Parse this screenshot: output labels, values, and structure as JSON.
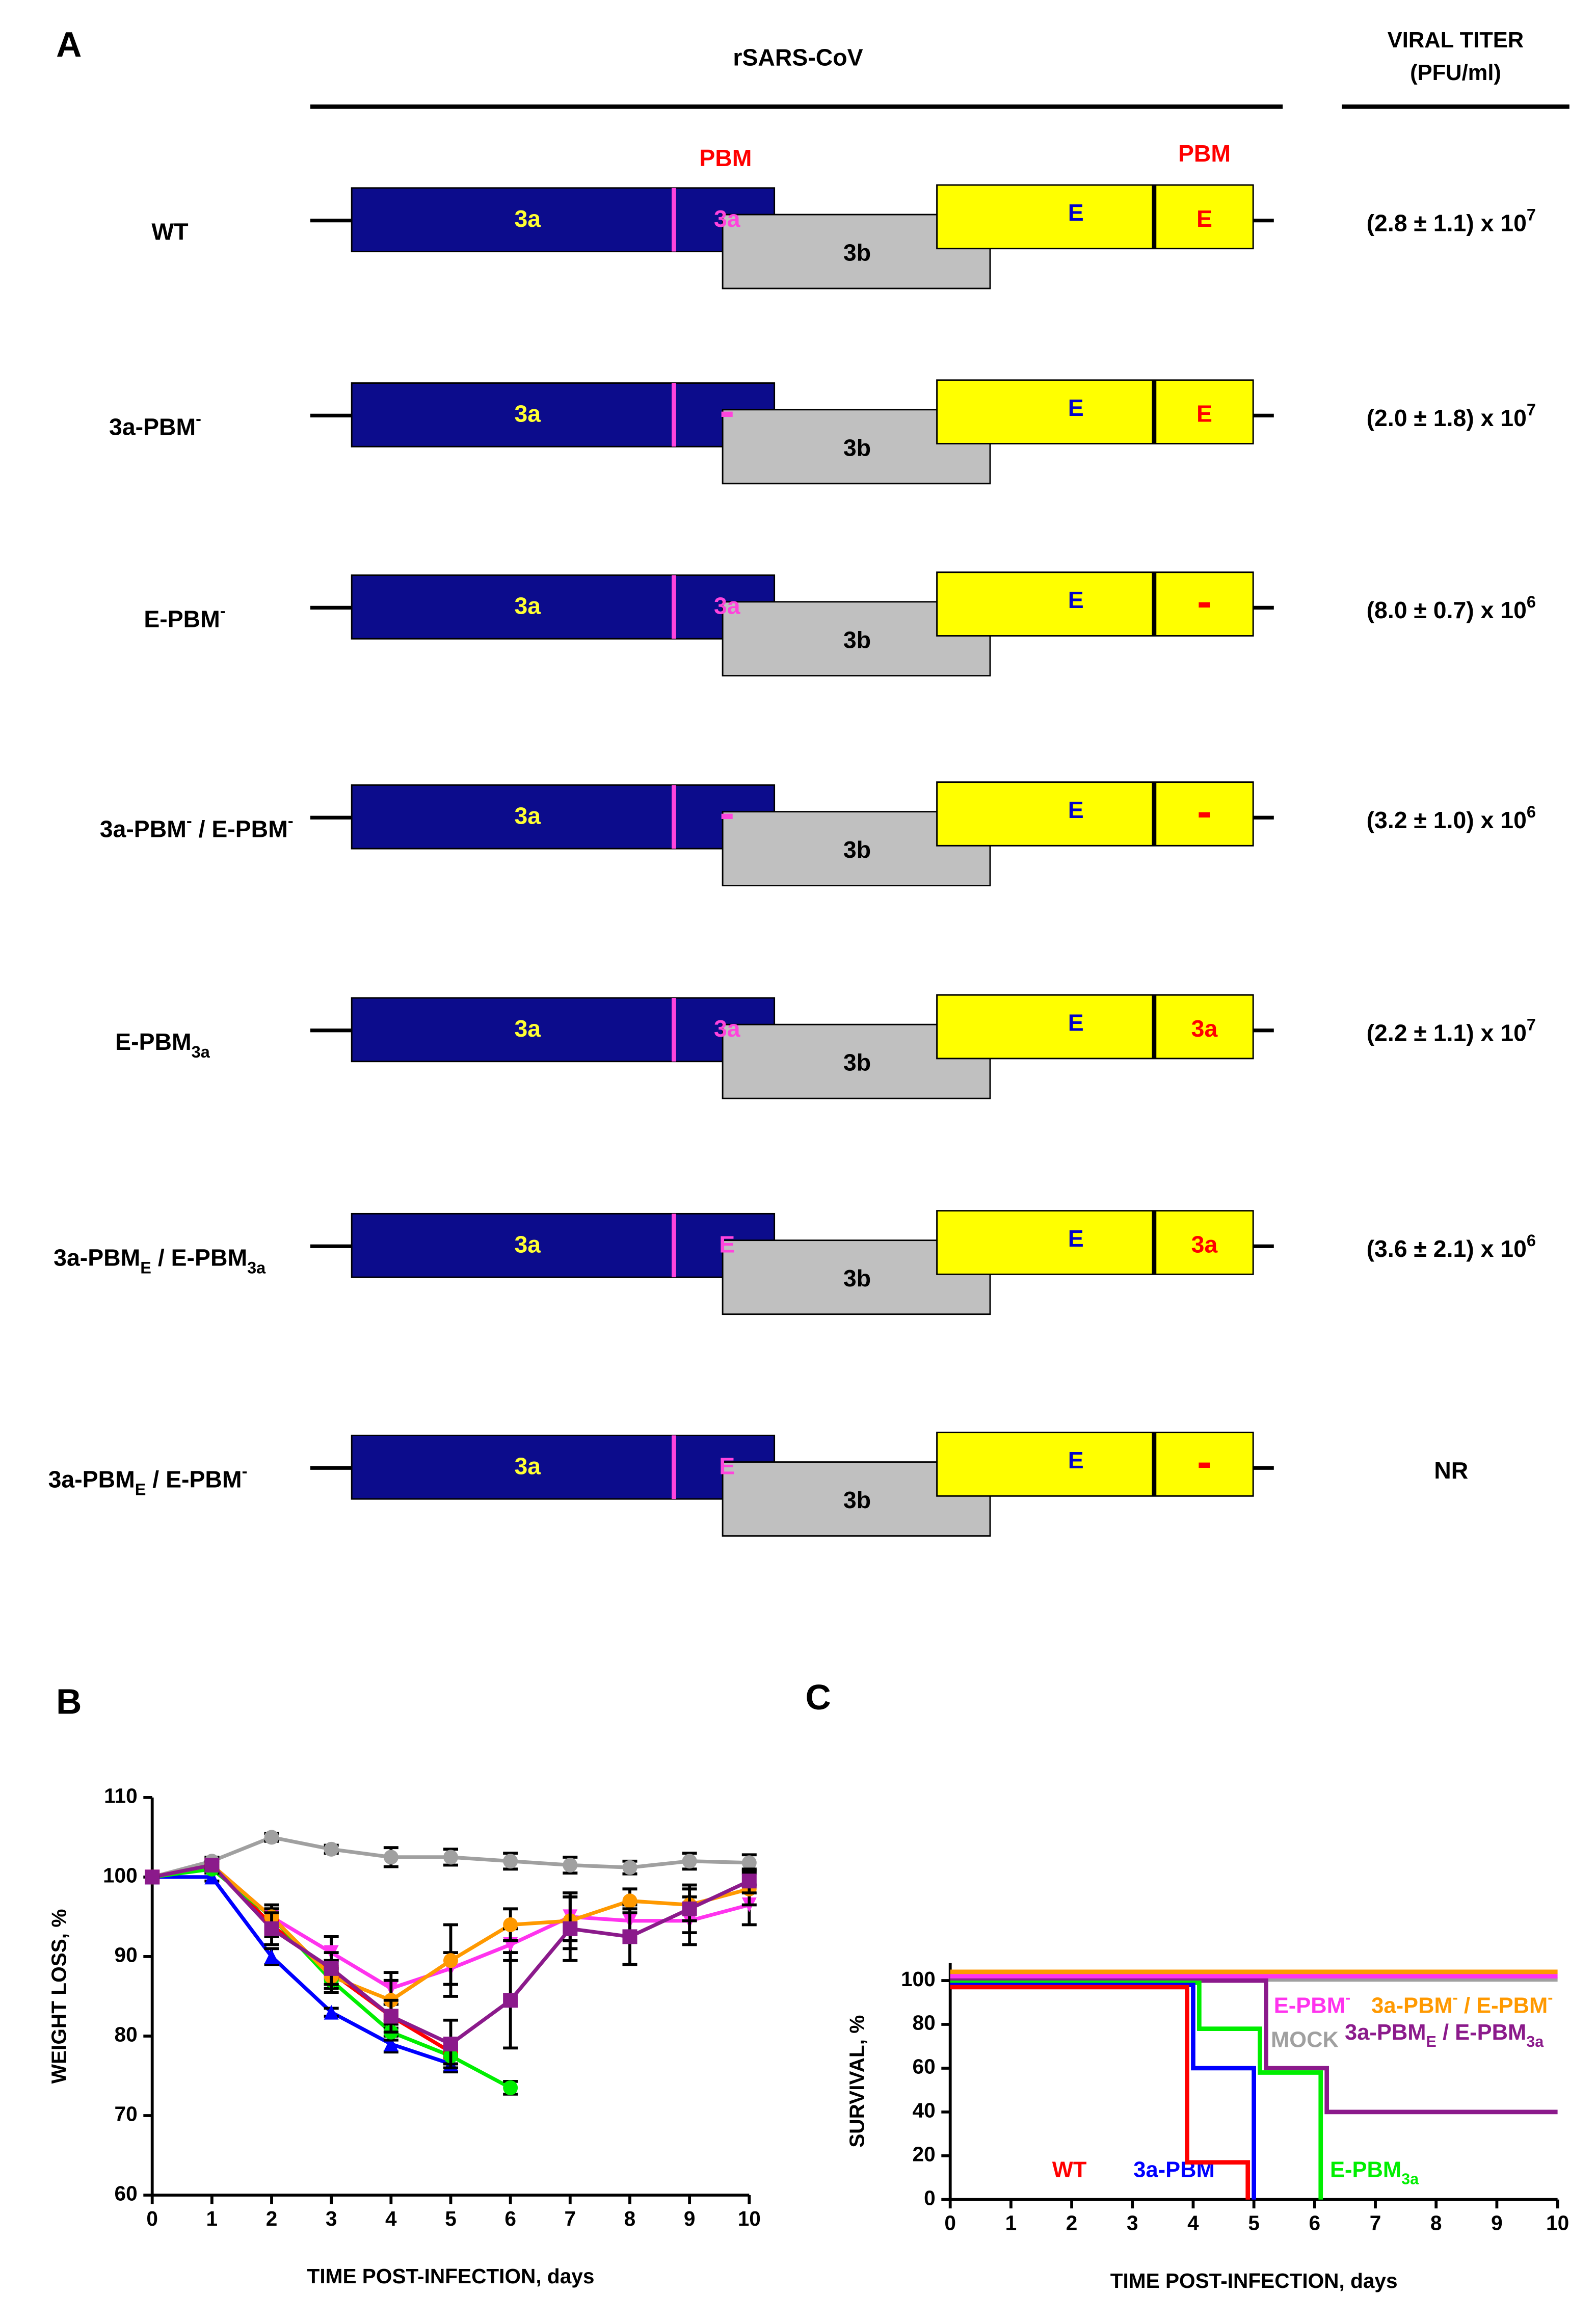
{
  "panel_labels": [
    "A",
    "B",
    "C"
  ],
  "diagram": {
    "header": "rSARS-CoV",
    "titer_header": [
      "VIRAL TITER",
      "(PFU/ml)"
    ],
    "pbm_labels": [
      "PBM",
      "PBM"
    ],
    "rows": [
      {
        "name": [
          {
            "text": "WT"
          }
        ],
        "a3": "3a",
        "a3_pbm": "3a",
        "b3": "3b",
        "e": "E",
        "e_pbm": "E",
        "titer": [
          {
            "text": "(2.8 ± 1.1) x 10"
          },
          {
            "sup": "7"
          }
        ]
      },
      {
        "name": [
          {
            "text": "3a-PBM"
          },
          {
            "sup": "-"
          }
        ],
        "a3": "3a",
        "a3_pbm": "-",
        "b3": "3b",
        "e": "E",
        "e_pbm": "E",
        "titer": [
          {
            "text": "(2.0 ± 1.8) x 10"
          },
          {
            "sup": "7"
          }
        ]
      },
      {
        "name": [
          {
            "text": "E-PBM"
          },
          {
            "sup": "-"
          }
        ],
        "a3": "3a",
        "a3_pbm": "3a",
        "b3": "3b",
        "e": "E",
        "e_pbm": "-",
        "titer": [
          {
            "text": "(8.0 ± 0.7) x 10"
          },
          {
            "sup": "6"
          }
        ]
      },
      {
        "name": [
          {
            "text": "3a-PBM"
          },
          {
            "sup": "-"
          },
          {
            "text": " / E-PBM"
          },
          {
            "sup": "-"
          }
        ],
        "a3": "3a",
        "a3_pbm": "-",
        "b3": "3b",
        "e": "E",
        "e_pbm": "-",
        "titer": [
          {
            "text": "(3.2 ± 1.0) x 10"
          },
          {
            "sup": "6"
          }
        ]
      },
      {
        "name": [
          {
            "text": "E-PBM"
          },
          {
            "sub": "3a"
          }
        ],
        "a3": "3a",
        "a3_pbm": "3a",
        "b3": "3b",
        "e": "E",
        "e_pbm": "3a",
        "titer": [
          {
            "text": "(2.2 ± 1.1) x 10"
          },
          {
            "sup": "7"
          }
        ]
      },
      {
        "name": [
          {
            "text": "3a-PBM"
          },
          {
            "sub": "E"
          },
          {
            "text": " / E-PBM"
          },
          {
            "sub": "3a"
          }
        ],
        "a3": "3a",
        "a3_pbm": "E",
        "b3": "3b",
        "e": "E",
        "e_pbm": "3a",
        "titer": [
          {
            "text": "(3.6 ± 2.1) x 10"
          },
          {
            "sup": "6"
          }
        ]
      },
      {
        "name": [
          {
            "text": "3a-PBM"
          },
          {
            "sub": "E"
          },
          {
            "text": " / E-PBM"
          },
          {
            "sup": "-"
          }
        ],
        "a3": "3a",
        "a3_pbm": "E",
        "b3": "3b",
        "e": "E",
        "e_pbm": "-",
        "titer": [
          {
            "text": "NR"
          }
        ]
      }
    ]
  },
  "chart_data": [
    {
      "type": "line",
      "xlabel": "TIME POST-INFECTION, days",
      "ylabel": "WEIGHT LOSS, %",
      "x": [
        0,
        1,
        2,
        3,
        4,
        5,
        6,
        7,
        8,
        9,
        10
      ],
      "xlim": [
        0,
        10
      ],
      "xticks": [
        0,
        1,
        2,
        3,
        4,
        5,
        6,
        7,
        8,
        9,
        10
      ],
      "ylim": [
        60,
        110
      ],
      "yticks": [
        60,
        70,
        80,
        90,
        100,
        110
      ],
      "series": [
        {
          "color": "#a0a0a0",
          "marker": "circle",
          "values": [
            100,
            102,
            105,
            103.5,
            102.5,
            102.5,
            102,
            101.5,
            101.2,
            102,
            101.8
          ],
          "errors": [
            0,
            0.5,
            0.5,
            0.5,
            1.2,
            1,
            1,
            1,
            0.8,
            1,
            1
          ]
        },
        {
          "color": "#ff0000",
          "marker": "square",
          "values": [
            100,
            101.5,
            94,
            88,
            82.5,
            78,
            null,
            null,
            null,
            null,
            null
          ],
          "errors": [
            0,
            0.5,
            1.5,
            1.5,
            1.5,
            1.5,
            null,
            null,
            null,
            null,
            null
          ]
        },
        {
          "color": "#0000ff",
          "marker": "triangle",
          "values": [
            100,
            100,
            90,
            83,
            79,
            76.5,
            null,
            null,
            null,
            null,
            null
          ],
          "errors": [
            0,
            0.5,
            1,
            0.5,
            1,
            1,
            null,
            null,
            null,
            null,
            null
          ]
        },
        {
          "color": "#00ee00",
          "marker": "circle",
          "values": [
            100,
            101,
            95,
            87,
            80.5,
            77.5,
            73.5,
            null,
            null,
            null,
            null
          ],
          "errors": [
            0,
            0.5,
            1,
            1,
            1,
            1,
            0.8,
            null,
            null,
            null,
            null
          ]
        },
        {
          "color": "#ff33ee",
          "marker": "triangle-down",
          "values": [
            100,
            101.5,
            95,
            90.5,
            86,
            88.5,
            91.5,
            95,
            94.5,
            94.5,
            96.5
          ],
          "errors": [
            0,
            0.5,
            1.5,
            2,
            2,
            2,
            2,
            3,
            2,
            3,
            2.5
          ]
        },
        {
          "color": "#ff9900",
          "marker": "circle",
          "values": [
            100,
            101.5,
            95,
            87.5,
            84.5,
            89.5,
            94,
            94.5,
            97,
            96.5,
            98.5
          ],
          "errors": [
            0,
            0.5,
            1,
            2,
            2.5,
            4.5,
            2,
            3.5,
            1.5,
            2,
            2
          ]
        },
        {
          "color": "#8b1a8b",
          "marker": "square",
          "values": [
            100,
            101.5,
            93.5,
            88.5,
            82.5,
            79,
            84.5,
            93.5,
            92.5,
            96,
            99.5
          ],
          "errors": [
            0,
            0.5,
            2,
            2,
            2,
            3,
            6,
            4,
            3.5,
            3,
            1.5
          ]
        }
      ]
    },
    {
      "type": "step",
      "xlabel": "TIME POST-INFECTION, days",
      "ylabel": "SURVIVAL, %",
      "xlim": [
        0,
        10
      ],
      "xticks": [
        0,
        1,
        2,
        3,
        4,
        5,
        6,
        7,
        8,
        9,
        10
      ],
      "ylim": [
        0,
        108
      ],
      "yticks": [
        0,
        20,
        40,
        60,
        80,
        100
      ],
      "series": [
        {
          "name": [
            {
              "text": "MOCK"
            }
          ],
          "color": "#a0a0a0",
          "x": [
            0,
            10
          ],
          "values": [
            100.5,
            100.5
          ]
        },
        {
          "name": [
            {
              "text": "E-PBM"
            },
            {
              "sup": "-"
            }
          ],
          "color": "#ff33ee",
          "x": [
            0,
            10
          ],
          "values": [
            102,
            102
          ]
        },
        {
          "name": [
            {
              "text": "3a-PBM"
            },
            {
              "sup": "-"
            },
            {
              "text": " / E-PBM"
            },
            {
              "sup": "-"
            }
          ],
          "color": "#ff9900",
          "x": [
            0,
            10
          ],
          "values": [
            104,
            104
          ]
        },
        {
          "name": [
            {
              "text": "3a-PBM"
            },
            {
              "sub": "E"
            },
            {
              "text": " / E-PBM"
            },
            {
              "sub": "3a"
            }
          ],
          "color": "#8b1a8b",
          "x": [
            0,
            5.2,
            6.2,
            10
          ],
          "values": [
            100,
            60,
            40,
            40
          ]
        },
        {
          "name": [
            {
              "text": "E-PBM"
            },
            {
              "sub": "3a"
            }
          ],
          "color": "#00ee00",
          "x": [
            0,
            4.1,
            5.1,
            6.1
          ],
          "values": [
            99,
            78,
            58,
            0
          ]
        },
        {
          "name": [
            {
              "text": "3a-PBM"
            },
            {
              "sup": "-"
            }
          ],
          "color": "#0000ff",
          "x": [
            0,
            4,
            5
          ],
          "values": [
            98,
            60,
            0
          ]
        },
        {
          "name": [
            {
              "text": "WT"
            }
          ],
          "color": "#ff0000",
          "x": [
            0,
            3.9,
            4.9
          ],
          "values": [
            97,
            17,
            0
          ]
        }
      ]
    }
  ]
}
